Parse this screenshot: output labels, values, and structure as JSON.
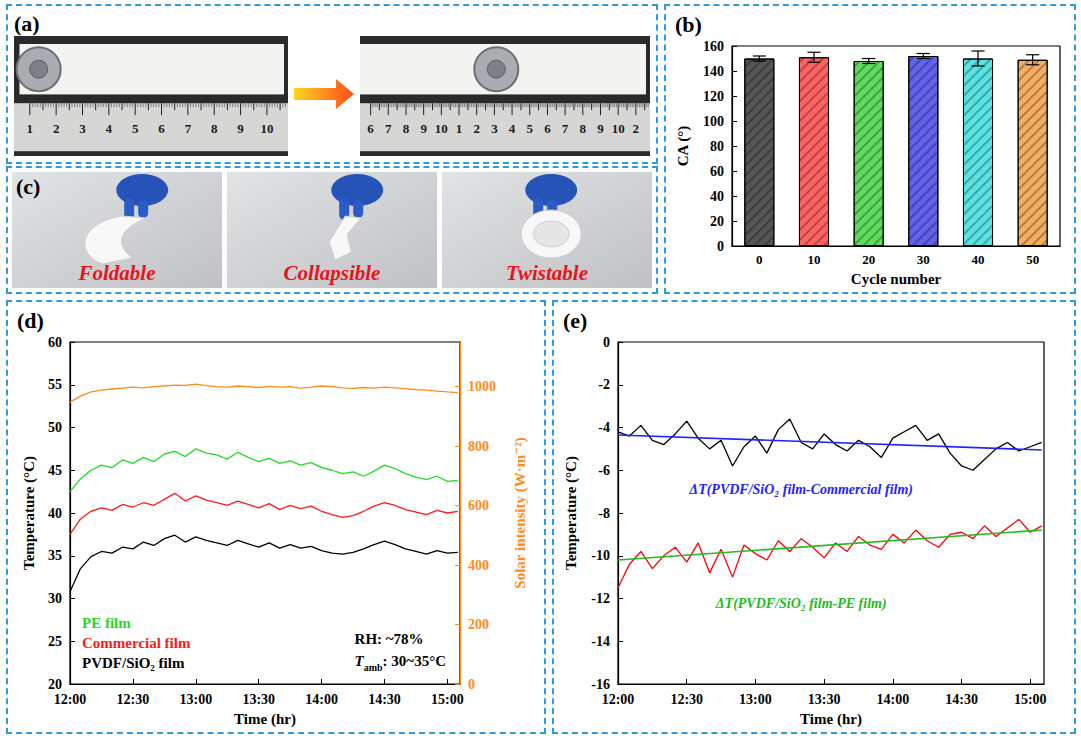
{
  "photos": {
    "a": {
      "panel": "(a)",
      "ruler_before": [
        "1",
        "2",
        "3",
        "4",
        "5",
        "6",
        "7",
        "8",
        "9",
        "10"
      ],
      "ruler_after": [
        "6",
        "7",
        "8",
        "9",
        "10",
        "1",
        "2",
        "3",
        "4",
        "5",
        "6",
        "7",
        "8",
        "9",
        "10",
        "2"
      ]
    },
    "c": {
      "panel": "(c)",
      "captions": [
        "Foldable",
        "Collapsible",
        "Twistable"
      ]
    }
  },
  "chart_data": [
    {
      "panel": "(b)",
      "type": "bar",
      "x_label": "Cycle number",
      "y_label": "CA (°)",
      "categories": [
        "0",
        "10",
        "20",
        "30",
        "40",
        "50"
      ],
      "values": [
        150,
        151,
        148,
        152,
        150,
        149
      ],
      "errors": [
        2,
        4,
        2,
        2,
        6,
        4
      ],
      "colors": [
        "#555555",
        "#ff6262",
        "#5edc5e",
        "#6262ec",
        "#58e4e4",
        "#f5ad62"
      ],
      "ylim": [
        0,
        160
      ],
      "yticks": [
        0,
        20,
        40,
        60,
        80,
        100,
        120,
        140,
        160
      ],
      "grid": false
    },
    {
      "panel": "(d)",
      "type": "line",
      "x_label": "Time (hr)",
      "y_label": "Temperature (°C)",
      "x": [
        720,
        725,
        730,
        735,
        740,
        745,
        750,
        755,
        760,
        765,
        770,
        775,
        780,
        785,
        790,
        795,
        800,
        805,
        810,
        815,
        820,
        825,
        830,
        835,
        840,
        845,
        850,
        855,
        860,
        865,
        870,
        875,
        880,
        885,
        890,
        895,
        900,
        905
      ],
      "xlim": [
        720,
        906
      ],
      "xticks": [
        {
          "value": 720,
          "label": "12:00"
        },
        {
          "value": 750,
          "label": "12:30"
        },
        {
          "value": 780,
          "label": "13:00"
        },
        {
          "value": 810,
          "label": "13:30"
        },
        {
          "value": 840,
          "label": "14:00"
        },
        {
          "value": 870,
          "label": "14:30"
        },
        {
          "value": 900,
          "label": "15:00"
        }
      ],
      "ylim": [
        20,
        60
      ],
      "yticks": [
        20,
        25,
        30,
        35,
        40,
        45,
        50,
        55,
        60
      ],
      "y2lim": [
        0,
        1150
      ],
      "y2ticks": [
        0,
        200,
        400,
        600,
        800,
        1000
      ],
      "legend": "lower left",
      "grid": false,
      "series": [
        {
          "name": "PE film",
          "color": "#22dd22",
          "values": [
            42.5,
            44.0,
            45.0,
            45.6,
            45.3,
            46.2,
            45.8,
            46.5,
            46.0,
            46.9,
            47.2,
            46.6,
            47.5,
            47.0,
            46.8,
            46.3,
            47.1,
            46.5,
            46.0,
            46.4,
            45.8,
            46.1,
            45.6,
            45.9,
            45.3,
            45.0,
            44.6,
            44.8,
            44.3,
            44.9,
            45.6,
            45.2,
            44.6,
            44.2,
            43.9,
            44.3,
            43.7,
            43.8
          ]
        },
        {
          "name": "Commercial film",
          "color": "#ff1a1a",
          "values": [
            37.5,
            39.3,
            40.2,
            40.6,
            40.3,
            41.0,
            40.7,
            41.2,
            40.9,
            41.6,
            42.3,
            41.4,
            42.0,
            41.5,
            41.2,
            40.9,
            41.4,
            41.0,
            40.6,
            41.1,
            40.4,
            40.9,
            40.5,
            40.8,
            40.2,
            39.8,
            39.5,
            39.7,
            40.2,
            40.8,
            41.2,
            40.9,
            40.4,
            40.1,
            39.8,
            40.3,
            40.0,
            40.2
          ]
        },
        {
          "name": "PVDF/SiO₂ film",
          "color": "#000000",
          "values": [
            30.8,
            33.5,
            34.9,
            35.5,
            35.3,
            36.0,
            35.8,
            36.6,
            36.2,
            37.0,
            37.4,
            36.6,
            37.2,
            36.8,
            36.5,
            36.2,
            36.8,
            36.4,
            36.0,
            36.5,
            35.9,
            36.3,
            35.9,
            36.1,
            35.6,
            35.3,
            35.2,
            35.4,
            35.8,
            36.3,
            36.7,
            36.3,
            35.8,
            35.5,
            35.2,
            35.6,
            35.3,
            35.4
          ]
        },
        {
          "name": "Solar intensity (W·m⁻²)",
          "color": "#ff8c1a",
          "axis": "y2",
          "values": [
            948,
            968,
            982,
            988,
            992,
            995,
            998,
            996,
            1000,
            1002,
            1005,
            1004,
            1008,
            1003,
            1000,
            998,
            1002,
            1000,
            997,
            1001,
            998,
            1000,
            995,
            998,
            1002,
            1000,
            996,
            994,
            997,
            995,
            998,
            996,
            993,
            990,
            988,
            985,
            982,
            980
          ]
        }
      ],
      "annotations": [
        {
          "text": "RH: ~78%"
        },
        {
          "symbol": "T",
          "subscript": "amb",
          "text": ": 30~35°C"
        }
      ]
    },
    {
      "panel": "(e)",
      "type": "line",
      "x_label": "Time (hr)",
      "y_label": "Temperature (°C)",
      "x": [
        720,
        725,
        730,
        735,
        740,
        745,
        750,
        755,
        760,
        765,
        770,
        775,
        780,
        785,
        790,
        795,
        800,
        805,
        810,
        815,
        820,
        825,
        830,
        835,
        840,
        845,
        850,
        855,
        860,
        865,
        870,
        875,
        880,
        885,
        890,
        895,
        900,
        905
      ],
      "xlim": [
        720,
        906
      ],
      "xticks": [
        {
          "value": 720,
          "label": "12:00"
        },
        {
          "value": 750,
          "label": "12:30"
        },
        {
          "value": 780,
          "label": "13:00"
        },
        {
          "value": 810,
          "label": "13:30"
        },
        {
          "value": 840,
          "label": "14:00"
        },
        {
          "value": 870,
          "label": "14:30"
        },
        {
          "value": 900,
          "label": "15:00"
        }
      ],
      "ylim": [
        -16,
        0
      ],
      "yticks": [
        -16,
        -14,
        -12,
        -10,
        -8,
        -6,
        -4,
        -2,
        0
      ],
      "grid": false,
      "series": [
        {
          "name": "ΔT(PVDF/SiO₂ film-Commercial film)",
          "color": "#000000",
          "values": [
            -4.2,
            -4.4,
            -3.9,
            -4.6,
            -4.8,
            -4.3,
            -3.7,
            -4.5,
            -5.0,
            -4.6,
            -5.8,
            -4.9,
            -4.4,
            -5.2,
            -4.1,
            -3.6,
            -4.7,
            -5.0,
            -4.3,
            -4.8,
            -5.1,
            -4.6,
            -4.9,
            -5.4,
            -4.5,
            -4.2,
            -3.9,
            -4.6,
            -4.3,
            -5.2,
            -5.8,
            -6.0,
            -5.5,
            -5.0,
            -4.7,
            -5.1,
            -4.9,
            -4.7
          ],
          "trend": {
            "color": "#2222ff",
            "values": [
              -4.35,
              -5.05
            ]
          }
        },
        {
          "name": "ΔT(PVDF/SiO₂ film-PE film)",
          "color": "#ff0000",
          "values": [
            -11.5,
            -10.4,
            -9.8,
            -10.6,
            -10.0,
            -9.6,
            -10.3,
            -9.4,
            -10.8,
            -9.7,
            -11.0,
            -9.5,
            -9.9,
            -10.2,
            -9.3,
            -9.8,
            -9.2,
            -9.6,
            -10.1,
            -9.4,
            -9.8,
            -9.1,
            -9.5,
            -9.7,
            -9.0,
            -9.4,
            -8.8,
            -9.3,
            -9.6,
            -9.0,
            -8.9,
            -9.2,
            -8.6,
            -9.1,
            -8.7,
            -8.3,
            -8.9,
            -8.6
          ],
          "trend": {
            "color": "#22bb22",
            "values": [
              -10.2,
              -8.8
            ]
          }
        }
      ]
    }
  ]
}
